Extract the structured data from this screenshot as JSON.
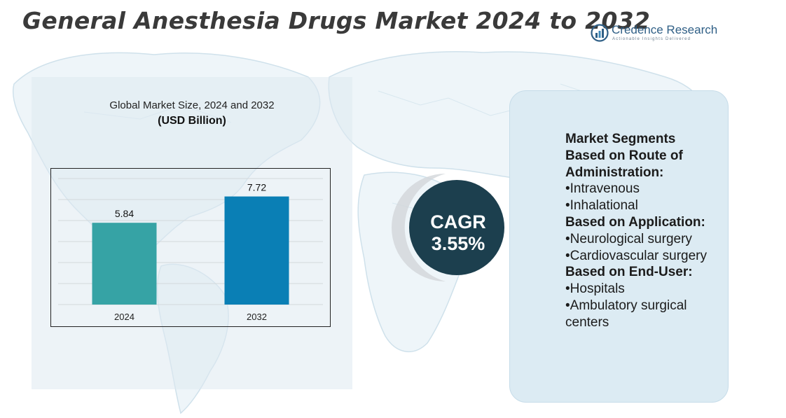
{
  "title": "General Anesthesia Drugs Market 2024 to 2032",
  "logo": {
    "name": "Credence Research",
    "tagline": "Actionable Insights Delivered"
  },
  "chart_panel": {
    "title": "Global Market Size, 2024 and 2032",
    "unit": "(USD Billion)"
  },
  "chart_data": {
    "type": "bar",
    "title": "Global Market Size, 2024 and 2032",
    "ylabel": "(USD Billion)",
    "categories": [
      "2024",
      "2032"
    ],
    "values": [
      5.84,
      7.72
    ],
    "colors": [
      "#36a3a5",
      "#0a7fb5"
    ],
    "ylim": [
      0,
      9
    ],
    "grid": true
  },
  "cagr": {
    "label": "CAGR",
    "value": "3.55%"
  },
  "segments": {
    "heading1": "Market Segments",
    "heading2": "Based on Route of Administration:",
    "route_items": [
      "•Intravenous",
      "•Inhalational"
    ],
    "heading3": "Based on Application:",
    "application_items": [
      "•Neurological surgery",
      "•Cardiovascular surgery"
    ],
    "heading4": "Based on End-User:",
    "enduser_items": [
      "•Hospitals",
      "•Ambulatory surgical centers"
    ]
  },
  "colors": {
    "title": "#3a3a3a",
    "cagr_circle": "#1c3f4e",
    "panel": "#dcebf3",
    "brand": "#2f5f86"
  }
}
